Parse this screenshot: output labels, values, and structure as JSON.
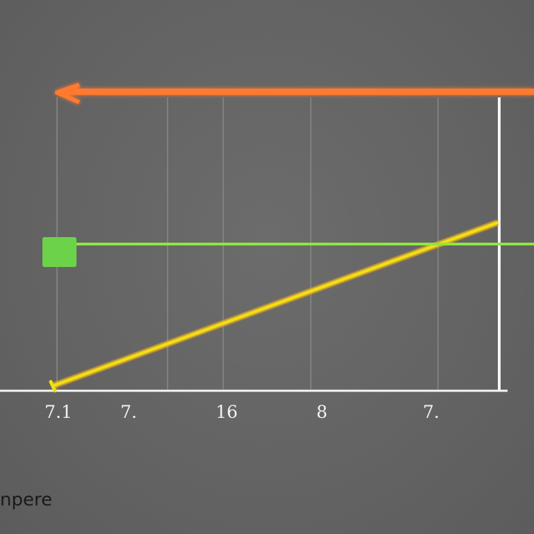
{
  "chart_data": {
    "type": "line",
    "title": "",
    "xlabel": "",
    "ylabel": "",
    "grid": "vertical-only",
    "legend": "none",
    "tick_labels": [
      "7.1",
      "7.",
      "16",
      "8",
      "7."
    ],
    "series": [
      {
        "color": "#f0e015",
        "glow": "#ff9a1a",
        "points": [
          [
            0,
            0
          ],
          [
            1,
            1
          ]
        ]
      },
      {
        "color": "#8ee83c",
        "marker": "square",
        "marker_color": "#6cd24a",
        "points": [
          [
            0,
            0.8
          ],
          [
            1.08,
            0.8
          ]
        ]
      }
    ],
    "arrow": {
      "color": "#ff7a2e",
      "direction": "left"
    },
    "colors": {
      "background": "#656565",
      "axis": "#f5f5f5",
      "grid": "#8a8a82"
    }
  },
  "watermark": "npere"
}
